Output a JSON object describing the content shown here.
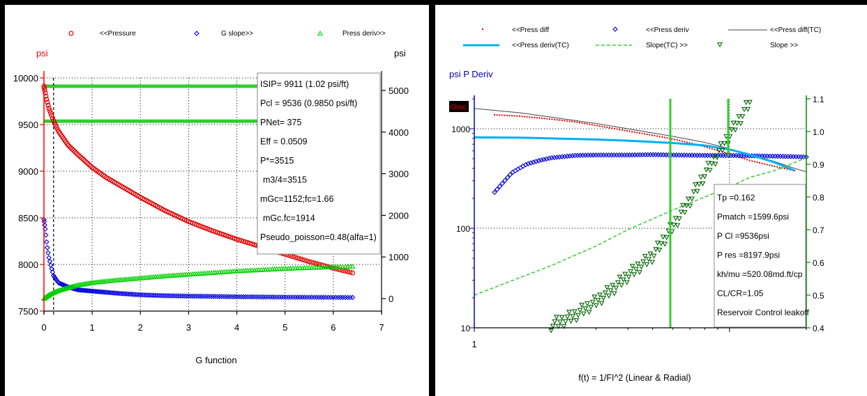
{
  "chart_data": [
    {
      "type": "scatter",
      "title": "",
      "xlabel": "G function",
      "ylabel_left": "psi",
      "ylabel_right": "psi",
      "xlim": [
        0,
        7
      ],
      "ylim_left": [
        7500,
        10000
      ],
      "ylim_right": [
        -300,
        5300
      ],
      "x_ticks": [
        "0",
        "1",
        "2",
        "3",
        "4",
        "5",
        "6",
        "7"
      ],
      "y_left_ticks": [
        "10000",
        "9500",
        "9000",
        "8500",
        "8000",
        "7500"
      ],
      "y_right_ticks": [
        "5000",
        "4000",
        "3000",
        "2000",
        "1000",
        "0"
      ],
      "legend": [
        "<<Pressure",
        "G slope>>",
        "Press deriv>>"
      ],
      "colors": {
        "pressure": "#e00000",
        "g_slope": "#0000dd",
        "press_deriv": "#00d000",
        "axis_left": "#ff0000",
        "axis_right": "#000000",
        "annotation_lines": "#33cc33"
      },
      "series": [
        {
          "name": "<<Pressure",
          "axis": "left",
          "marker": "circle",
          "x": [
            0.0,
            0.05,
            0.1,
            0.2,
            0.3,
            0.5,
            0.7,
            1.0,
            1.3,
            1.6,
            2.0,
            2.5,
            3.0,
            3.5,
            4.0,
            4.5,
            5.0,
            5.5,
            6.0,
            6.4
          ],
          "y": [
            9911,
            9780,
            9680,
            9540,
            9430,
            9280,
            9180,
            9040,
            8930,
            8840,
            8720,
            8580,
            8460,
            8360,
            8270,
            8190,
            8110,
            8030,
            7960,
            7910
          ]
        },
        {
          "name": "G slope>>",
          "axis": "right",
          "marker": "diamond",
          "x": [
            0.0,
            0.03,
            0.06,
            0.1,
            0.15,
            0.2,
            0.3,
            0.5,
            0.7,
            1.0,
            1.5,
            2.0,
            2.5,
            3.0,
            4.0,
            5.0,
            6.0,
            6.4
          ],
          "y": [
            1900,
            1650,
            1300,
            1000,
            750,
            550,
            380,
            280,
            210,
            180,
            130,
            90,
            70,
            60,
            45,
            35,
            30,
            28
          ]
        },
        {
          "name": "Press deriv>>",
          "axis": "right",
          "marker": "triangle",
          "x": [
            0.0,
            0.05,
            0.1,
            0.2,
            0.3,
            0.5,
            0.7,
            1.0,
            1.5,
            2.0,
            2.5,
            3.0,
            3.5,
            4.0,
            4.5,
            5.0,
            5.5,
            6.0,
            6.4
          ],
          "y": [
            0,
            40,
            80,
            140,
            190,
            260,
            320,
            380,
            440,
            490,
            540,
            580,
            620,
            660,
            690,
            720,
            740,
            760,
            770
          ]
        }
      ],
      "reference_lines": {
        "isip": 9911,
        "pcl": 9536,
        "closure_g": 0.2
      },
      "annotations": [
        "ISIP= 9911 (1.02 psi/ft)",
        "Pcl = 9536 (0.9850 psi/ft)",
        "PNet= 375",
        "Eff = 0.0509",
        "P*=3515",
        "m3/4=3515",
        "mGc=1152;fc=1.66",
        "mGc.fc=1914",
        "Pseudo_poisson=0.48(alfa=1)"
      ],
      "grid": "dotted"
    },
    {
      "type": "scatter",
      "title": "",
      "xlabel": "f(t) = 1/FI^2 (Linear & Radial)",
      "ylabel": "psi P Deriv",
      "log_x": true,
      "log_y": true,
      "xlim": [
        1,
        20
      ],
      "ylim_left": [
        10,
        2000
      ],
      "ylim_right": [
        0.4,
        1.1
      ],
      "x_ticks": [
        "1"
      ],
      "y_left_ticks": [
        "1000",
        "100",
        "10"
      ],
      "y_right_ticks": [
        "1.1",
        "1.0",
        "0.9",
        "0.8",
        "0.7",
        "0.6",
        "0.5",
        "0.4"
      ],
      "legend": [
        "<<Press diff",
        "<<Press deriv",
        "<<Press diff(TC)",
        "<<Press deriv(TC)",
        "Slope(TC) >>",
        "Slope >>"
      ],
      "overlay_badge": "Ovsc",
      "colors": {
        "press_diff": "#e00000",
        "press_deriv": "#0000dd",
        "press_diff_tc": "#444444",
        "press_deriv_tc": "#00b0f0",
        "slope_tc": "#33cc33",
        "slope": "#006600",
        "axis_left": "#0000cc",
        "axis_right": "#008800",
        "annotation_lines": "#33cc33"
      },
      "series": [
        {
          "name": "<<Press diff",
          "axis": "left",
          "marker": "dot",
          "x": [
            1.2,
            1.5,
            2,
            2.5,
            3,
            4,
            5,
            6,
            7,
            8,
            10,
            12,
            15,
            18
          ],
          "y": [
            1380,
            1340,
            1250,
            1170,
            1080,
            950,
            860,
            790,
            720,
            660,
            560,
            480,
            420,
            380
          ]
        },
        {
          "name": "<<Press deriv",
          "axis": "left",
          "marker": "diamond",
          "x": [
            1.2,
            1.3,
            1.4,
            1.6,
            1.8,
            2.0,
            2.5,
            3,
            4,
            5,
            6,
            8,
            10,
            12,
            15,
            18,
            20
          ],
          "y": [
            230,
            290,
            360,
            440,
            480,
            510,
            540,
            545,
            545,
            550,
            545,
            540,
            540,
            535,
            530,
            525,
            520
          ]
        },
        {
          "name": "<<Press diff(TC)",
          "axis": "left",
          "marker": "line",
          "x": [
            1.0,
            1.5,
            2,
            3,
            4,
            6,
            8,
            10,
            12,
            15,
            18,
            20
          ],
          "y": [
            1600,
            1450,
            1310,
            1130,
            1000,
            840,
            730,
            630,
            550,
            470,
            400,
            370
          ]
        },
        {
          "name": "<<Press deriv(TC)",
          "axis": "left",
          "marker": "line",
          "x": [
            1.0,
            1.5,
            2,
            3,
            4,
            6,
            8,
            10,
            12,
            15,
            18
          ],
          "y": [
            820,
            815,
            800,
            780,
            760,
            720,
            680,
            620,
            550,
            460,
            380
          ]
        },
        {
          "name": "Slope(TC) >>",
          "axis": "right",
          "marker": "dashed",
          "x": [
            1.0,
            2,
            3,
            4,
            6,
            8,
            10,
            12,
            15,
            20
          ],
          "y": [
            0.5,
            0.59,
            0.65,
            0.7,
            0.76,
            0.8,
            0.83,
            0.86,
            0.88,
            0.92
          ]
        },
        {
          "name": "Slope >>",
          "axis": "right",
          "marker": "triangle",
          "x": [
            2.0,
            2.2,
            2.5,
            3,
            3.5,
            4,
            5,
            6,
            7,
            8,
            9,
            10,
            11,
            12
          ],
          "y": [
            0.41,
            0.42,
            0.44,
            0.48,
            0.52,
            0.56,
            0.62,
            0.71,
            0.79,
            0.87,
            0.93,
            0.99,
            1.04,
            1.09
          ]
        }
      ],
      "annotations": [
        "Tp      =0.162",
        "Pmatch =1599.6psi",
        "P Cl    =9536psi",
        "P res   =8197.9psi",
        "kh/mu =520.08md.ft/cp",
        "CL/CR=1.05",
        "Reservoir Control leakoff"
      ],
      "grid": "dotted"
    }
  ]
}
